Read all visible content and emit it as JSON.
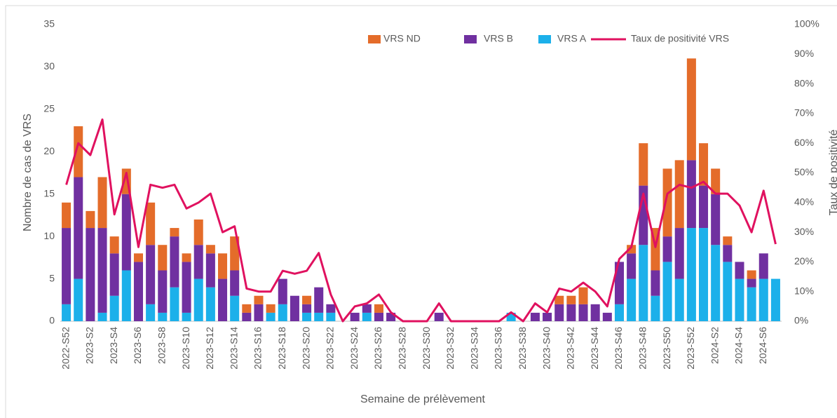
{
  "chart_data": {
    "type": "bar_line",
    "categories": [
      "2022-S52",
      null,
      "2023-S2",
      null,
      "2023-S4",
      null,
      "2023-S6",
      null,
      "2023-S8",
      null,
      "2023-S10",
      null,
      "2023-S12",
      null,
      "2023-S14",
      null,
      "2023-S16",
      null,
      "2023-S18",
      null,
      "2023-S20",
      null,
      "2023-S22",
      null,
      "2023-S24",
      null,
      "2023-S26",
      null,
      "2023-S28",
      null,
      "2023-S30",
      null,
      "2023-S32",
      null,
      "2023-S34",
      null,
      "2023-S36",
      null,
      "2023-S38",
      null,
      "2023-S40",
      null,
      "2023-S42",
      null,
      "2023-S44",
      null,
      "2023-S46",
      null,
      "2023-S48",
      null,
      "2023-S50",
      null,
      "2023-S52",
      null,
      "2024-S2",
      null,
      "2024-S4",
      null,
      "2024-S6",
      null
    ],
    "series": [
      {
        "name": "VRS ND",
        "color": "#e46c2a",
        "values": [
          3,
          6,
          2,
          6,
          2,
          3,
          1,
          5,
          3,
          1,
          1,
          3,
          1,
          3,
          4,
          1,
          1,
          1,
          0,
          0,
          1,
          0,
          0,
          0,
          0,
          0,
          1,
          0,
          0,
          0,
          0,
          0,
          0,
          0,
          0,
          0,
          0,
          0,
          0,
          0,
          0,
          1,
          1,
          2,
          0,
          0,
          0,
          1,
          5,
          5,
          8,
          8,
          12,
          5,
          3,
          1,
          0,
          1,
          0,
          0
        ]
      },
      {
        "name": "VRS B",
        "color": "#7030a0",
        "values": [
          9,
          12,
          11,
          10,
          5,
          9,
          7,
          7,
          5,
          6,
          6,
          4,
          4,
          5,
          3,
          1,
          2,
          0,
          3,
          3,
          1,
          3,
          1,
          0,
          1,
          1,
          1,
          1,
          0,
          0,
          0,
          1,
          0,
          0,
          0,
          0,
          0,
          0,
          0,
          1,
          1,
          2,
          2,
          2,
          2,
          1,
          5,
          3,
          7,
          3,
          3,
          6,
          8,
          5,
          6,
          2,
          2,
          1,
          3,
          0
        ]
      },
      {
        "name": "VRS A",
        "color": "#1cb0ea",
        "values": [
          2,
          5,
          0,
          1,
          3,
          6,
          0,
          2,
          1,
          4,
          1,
          5,
          4,
          0,
          3,
          0,
          0,
          1,
          2,
          0,
          1,
          1,
          1,
          0,
          0,
          1,
          0,
          0,
          0,
          0,
          0,
          0,
          0,
          0,
          0,
          0,
          0,
          1,
          0,
          0,
          0,
          0,
          0,
          0,
          0,
          0,
          2,
          5,
          9,
          3,
          7,
          5,
          11,
          11,
          9,
          7,
          5,
          4,
          5,
          5
        ]
      },
      {
        "name": "Taux de positivité VRS",
        "color": "#e0115f",
        "axis": "y2",
        "values": [
          46,
          60,
          56,
          68,
          36,
          50,
          25,
          46,
          45,
          46,
          38,
          40,
          43,
          30,
          32,
          11,
          10,
          10,
          17,
          16,
          17,
          23,
          9,
          0,
          5,
          6,
          9,
          3,
          0,
          0,
          0,
          6,
          0,
          0,
          0,
          0,
          0,
          3,
          0,
          6,
          3,
          11,
          10,
          13,
          10,
          5,
          21,
          25,
          43,
          25,
          43,
          46,
          45,
          47,
          43,
          43,
          39,
          30,
          44,
          26
        ]
      }
    ],
    "ylim": [
      0,
      35
    ],
    "yticks": [
      0,
      5,
      10,
      15,
      20,
      25,
      30,
      35
    ],
    "y2lim": [
      0,
      100
    ],
    "y2ticks": [
      {
        "value": 0,
        "label": "0%"
      },
      {
        "value": 10,
        "label": "10%"
      },
      {
        "value": 20,
        "label": "20%"
      },
      {
        "value": 30,
        "label": "30%"
      },
      {
        "value": 40,
        "label": "40%"
      },
      {
        "value": 50,
        "label": "50%"
      },
      {
        "value": 60,
        "label": "60%"
      },
      {
        "value": 70,
        "label": "70%"
      },
      {
        "value": 80,
        "label": "80%"
      },
      {
        "value": 90,
        "label": "90%"
      },
      {
        "value": 100,
        "label": "100%"
      }
    ],
    "xlabel": "Semaine de prélèvement",
    "ylabel": "Nombre de cas de VRS",
    "y2label": "Taux de positivité",
    "legend": "top"
  }
}
